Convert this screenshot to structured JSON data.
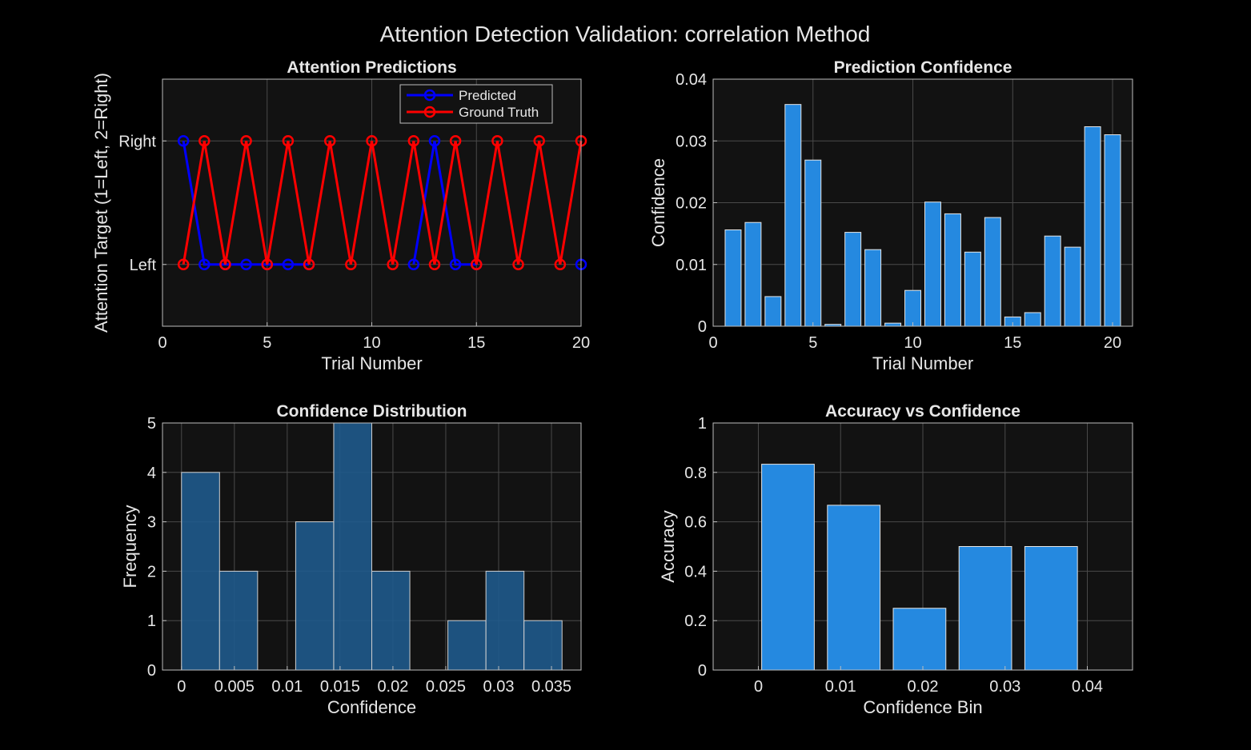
{
  "figure": {
    "title": "Attention Detection Validation: correlation Method",
    "background": "#000000",
    "axes_background": "#121212",
    "text_color": "#e6e6e6",
    "grid_color": "#4a4a4a"
  },
  "chart_data": [
    {
      "type": "line",
      "title": "Attention Predictions",
      "xlabel": "Trial Number",
      "ylabel": "Attention Target (1=Left, 2=Right)",
      "xlim": [
        0,
        20
      ],
      "ylim": [
        0.5,
        2.5
      ],
      "xticks": [
        0,
        5,
        10,
        15,
        20
      ],
      "xtick_labels": [
        "0",
        "5",
        "10",
        "15",
        "20"
      ],
      "yticks": [
        1,
        2
      ],
      "ytick_labels": [
        "Left",
        "Right"
      ],
      "grid": true,
      "legend": "top-right",
      "x": [
        1,
        2,
        3,
        4,
        5,
        6,
        7,
        8,
        9,
        10,
        11,
        12,
        13,
        14,
        15,
        16,
        17,
        18,
        19,
        20
      ],
      "series": [
        {
          "name": "Predicted",
          "color": "#0000ff",
          "values": [
            2,
            1,
            1,
            1,
            1,
            1,
            1,
            null,
            null,
            null,
            null,
            1,
            2,
            1,
            1,
            null,
            null,
            null,
            null,
            1
          ]
        },
        {
          "name": "Ground Truth",
          "color": "#ff0000",
          "values": [
            1,
            2,
            1,
            2,
            1,
            2,
            1,
            2,
            1,
            2,
            1,
            2,
            1,
            2,
            1,
            2,
            1,
            2,
            1,
            2
          ]
        }
      ]
    },
    {
      "type": "bar",
      "title": "Prediction Confidence",
      "xlabel": "Trial Number",
      "ylabel": "Confidence",
      "xlim": [
        0,
        21
      ],
      "ylim": [
        0,
        0.04
      ],
      "xticks": [
        0,
        5,
        10,
        15,
        20
      ],
      "xtick_labels": [
        "0",
        "5",
        "10",
        "15",
        "20"
      ],
      "yticks": [
        0,
        0.01,
        0.02,
        0.03,
        0.04
      ],
      "ytick_labels": [
        "0",
        "0.01",
        "0.02",
        "0.03",
        "0.04"
      ],
      "grid": true,
      "bar_color": "#2589e0",
      "categories": [
        1,
        2,
        3,
        4,
        5,
        6,
        7,
        8,
        9,
        10,
        11,
        12,
        13,
        14,
        15,
        16,
        17,
        18,
        19,
        20
      ],
      "values": [
        0.0156,
        0.0168,
        0.0048,
        0.0359,
        0.0269,
        0.0003,
        0.0152,
        0.0124,
        0.0005,
        0.0058,
        0.0201,
        0.0182,
        0.012,
        0.0176,
        0.0015,
        0.0022,
        0.0146,
        0.0128,
        0.0323,
        0.031
      ]
    },
    {
      "type": "bar",
      "title": "Confidence Distribution",
      "xlabel": "Confidence",
      "ylabel": "Frequency",
      "xlim": [
        -0.0018,
        0.0378
      ],
      "ylim": [
        0,
        5
      ],
      "xticks": [
        0,
        0.005,
        0.01,
        0.015,
        0.02,
        0.025,
        0.03,
        0.035
      ],
      "xtick_labels": [
        "0",
        "0.005",
        "0.01",
        "0.015",
        "0.02",
        "0.025",
        "0.03",
        "0.035"
      ],
      "yticks": [
        0,
        1,
        2,
        3,
        4,
        5
      ],
      "ytick_labels": [
        "0",
        "1",
        "2",
        "3",
        "4",
        "5"
      ],
      "grid": true,
      "bar_color": "#1f5a8c",
      "bin_edges": [
        0,
        0.0036,
        0.0072,
        0.0108,
        0.0144,
        0.018,
        0.0216,
        0.0252,
        0.0288,
        0.0324,
        0.036
      ],
      "values": [
        4,
        2,
        0,
        3,
        5,
        2,
        0,
        1,
        2,
        1
      ]
    },
    {
      "type": "bar",
      "title": "Accuracy vs Confidence",
      "xlabel": "Confidence Bin",
      "ylabel": "Accuracy",
      "xlim": [
        -0.0055,
        0.0455
      ],
      "ylim": [
        0,
        1
      ],
      "xticks": [
        0,
        0.01,
        0.02,
        0.03,
        0.04
      ],
      "xtick_labels": [
        "0",
        "0.01",
        "0.02",
        "0.03",
        "0.04"
      ],
      "yticks": [
        0,
        0.2,
        0.4,
        0.6,
        0.8,
        1
      ],
      "ytick_labels": [
        "0",
        "0.2",
        "0.4",
        "0.6",
        "0.8",
        "1"
      ],
      "grid": true,
      "bar_color": "#2589e0",
      "categories": [
        0.0036,
        0.0116,
        0.0196,
        0.0276,
        0.0356
      ],
      "values": [
        0.833,
        0.667,
        0.25,
        0.5,
        0.5
      ]
    }
  ]
}
